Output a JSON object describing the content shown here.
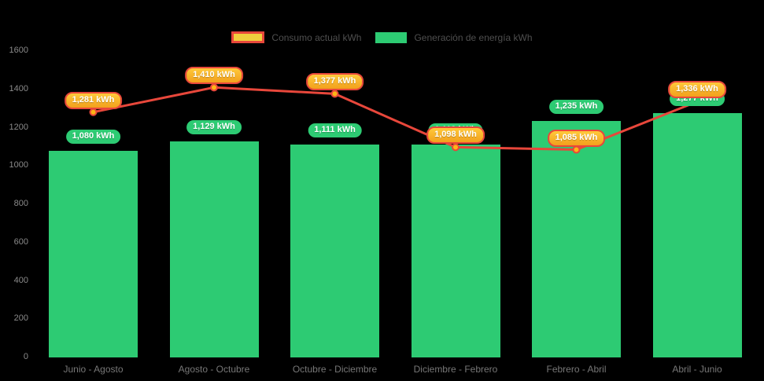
{
  "colors": {
    "background": "#000000",
    "bar_green": "#2DCB73",
    "line_red": "#E8473B",
    "marker_fill": "#FDB515",
    "consumo_pill_fill": "#F8AC22",
    "consumo_pill_border": "#E8473B",
    "legend_consumo_swatch_fill": "#F0CE3D",
    "axis_text": "#8A8A8A",
    "legend_text": "#4F4F4F"
  },
  "chart_data": {
    "type": "bar",
    "title": "",
    "xlabel": "",
    "ylabel": "",
    "ylim": [
      0,
      1600
    ],
    "yticks": [
      0,
      200,
      400,
      600,
      800,
      1000,
      1200,
      1400,
      1600
    ],
    "grid": false,
    "legend_position": "top",
    "categories": [
      "Junio - Agosto",
      "Agosto - Octubre",
      "Octubre - Diciembre",
      "Diciembre - Febrero",
      "Febrero - Abril",
      "Abril - Junio"
    ],
    "series": [
      {
        "name": "Consumo actual kWh",
        "type": "line",
        "values": [
          1281,
          1410,
          1377,
          1098,
          1085,
          1336
        ],
        "labels": [
          "1,281 kWh",
          "1,410 kWh",
          "1,377 kWh",
          "1,098 kWh",
          "1,085 kWh",
          "1,336 kWh"
        ]
      },
      {
        "name": "Generación de energía kWh",
        "type": "bar",
        "values": [
          1080,
          1129,
          1111,
          1113,
          1235,
          1277
        ],
        "labels": [
          "1,080 kWh",
          "1,129 kWh",
          "1,111 kWh",
          "1,113 kWh",
          "1,235 kWh",
          "1,277 kWh"
        ]
      }
    ]
  }
}
